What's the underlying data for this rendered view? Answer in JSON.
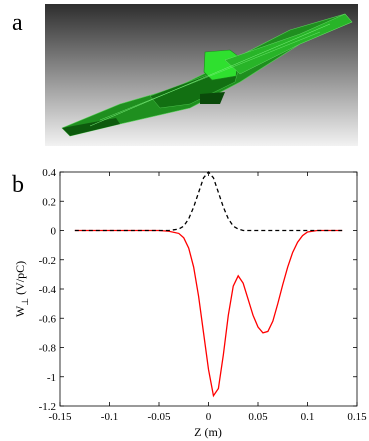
{
  "panel_labels": [
    "a",
    "b"
  ],
  "chart_data": {
    "type": "line",
    "xlabel": "Z (m)",
    "ylabel": "W",
    "ylabel_sub": "⊥",
    "ylabel_unit": "(V/pC)",
    "x": [
      -0.135,
      -0.1,
      -0.05,
      -0.04,
      -0.03,
      -0.025,
      -0.02,
      -0.015,
      -0.01,
      -0.005,
      0,
      0.005,
      0.01,
      0.015,
      0.02,
      0.025,
      0.03,
      0.035,
      0.04,
      0.045,
      0.05,
      0.055,
      0.06,
      0.065,
      0.07,
      0.075,
      0.08,
      0.085,
      0.09,
      0.095,
      0.1,
      0.11,
      0.135
    ],
    "series": [
      {
        "color": "#ff0000",
        "dash": false,
        "values": [
          0,
          0,
          0,
          -0.005,
          -0.02,
          -0.05,
          -0.12,
          -0.25,
          -0.45,
          -0.7,
          -0.95,
          -1.13,
          -1.08,
          -0.85,
          -0.58,
          -0.38,
          -0.31,
          -0.36,
          -0.47,
          -0.58,
          -0.66,
          -0.7,
          -0.69,
          -0.62,
          -0.5,
          -0.37,
          -0.25,
          -0.15,
          -0.08,
          -0.035,
          -0.01,
          0,
          0
        ]
      },
      {
        "color": "#000000",
        "dash": true,
        "values": [
          0,
          0,
          0,
          0,
          0.01,
          0.03,
          0.08,
          0.16,
          0.26,
          0.36,
          0.4,
          0.36,
          0.26,
          0.16,
          0.08,
          0.03,
          0.01,
          0,
          0,
          0,
          0,
          0,
          0,
          0,
          0,
          0,
          0,
          0,
          0,
          0,
          0,
          0,
          0
        ]
      }
    ],
    "xlim": [
      -0.15,
      0.15
    ],
    "xticks": [
      -0.15,
      -0.1,
      -0.05,
      0,
      0.05,
      0.1,
      0.15
    ],
    "ylim": [
      -1.2,
      0.4
    ],
    "yticks": [
      -1.2,
      -1,
      -0.8,
      -0.6,
      -0.4,
      -0.2,
      0,
      0.2,
      0.4
    ]
  }
}
